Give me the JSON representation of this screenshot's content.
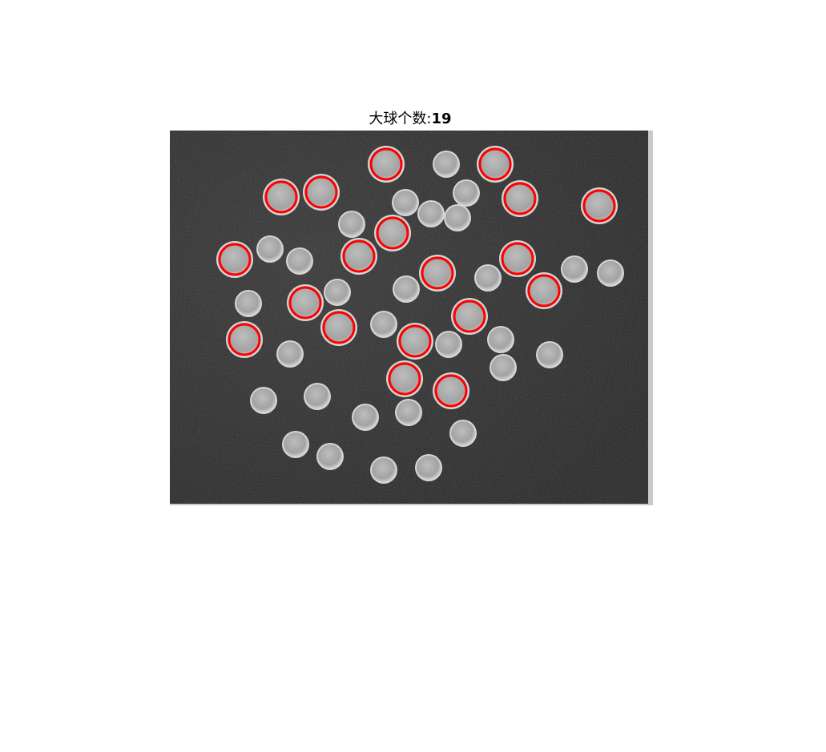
{
  "figure": {
    "title_prefix": "大球个数:",
    "count": "19"
  },
  "colors": {
    "background": "#3a3a3a",
    "ball_fill": "#a9a9a9",
    "ball_rim": "#d6d6d6",
    "circle_stroke": "#ff0000"
  }
}
